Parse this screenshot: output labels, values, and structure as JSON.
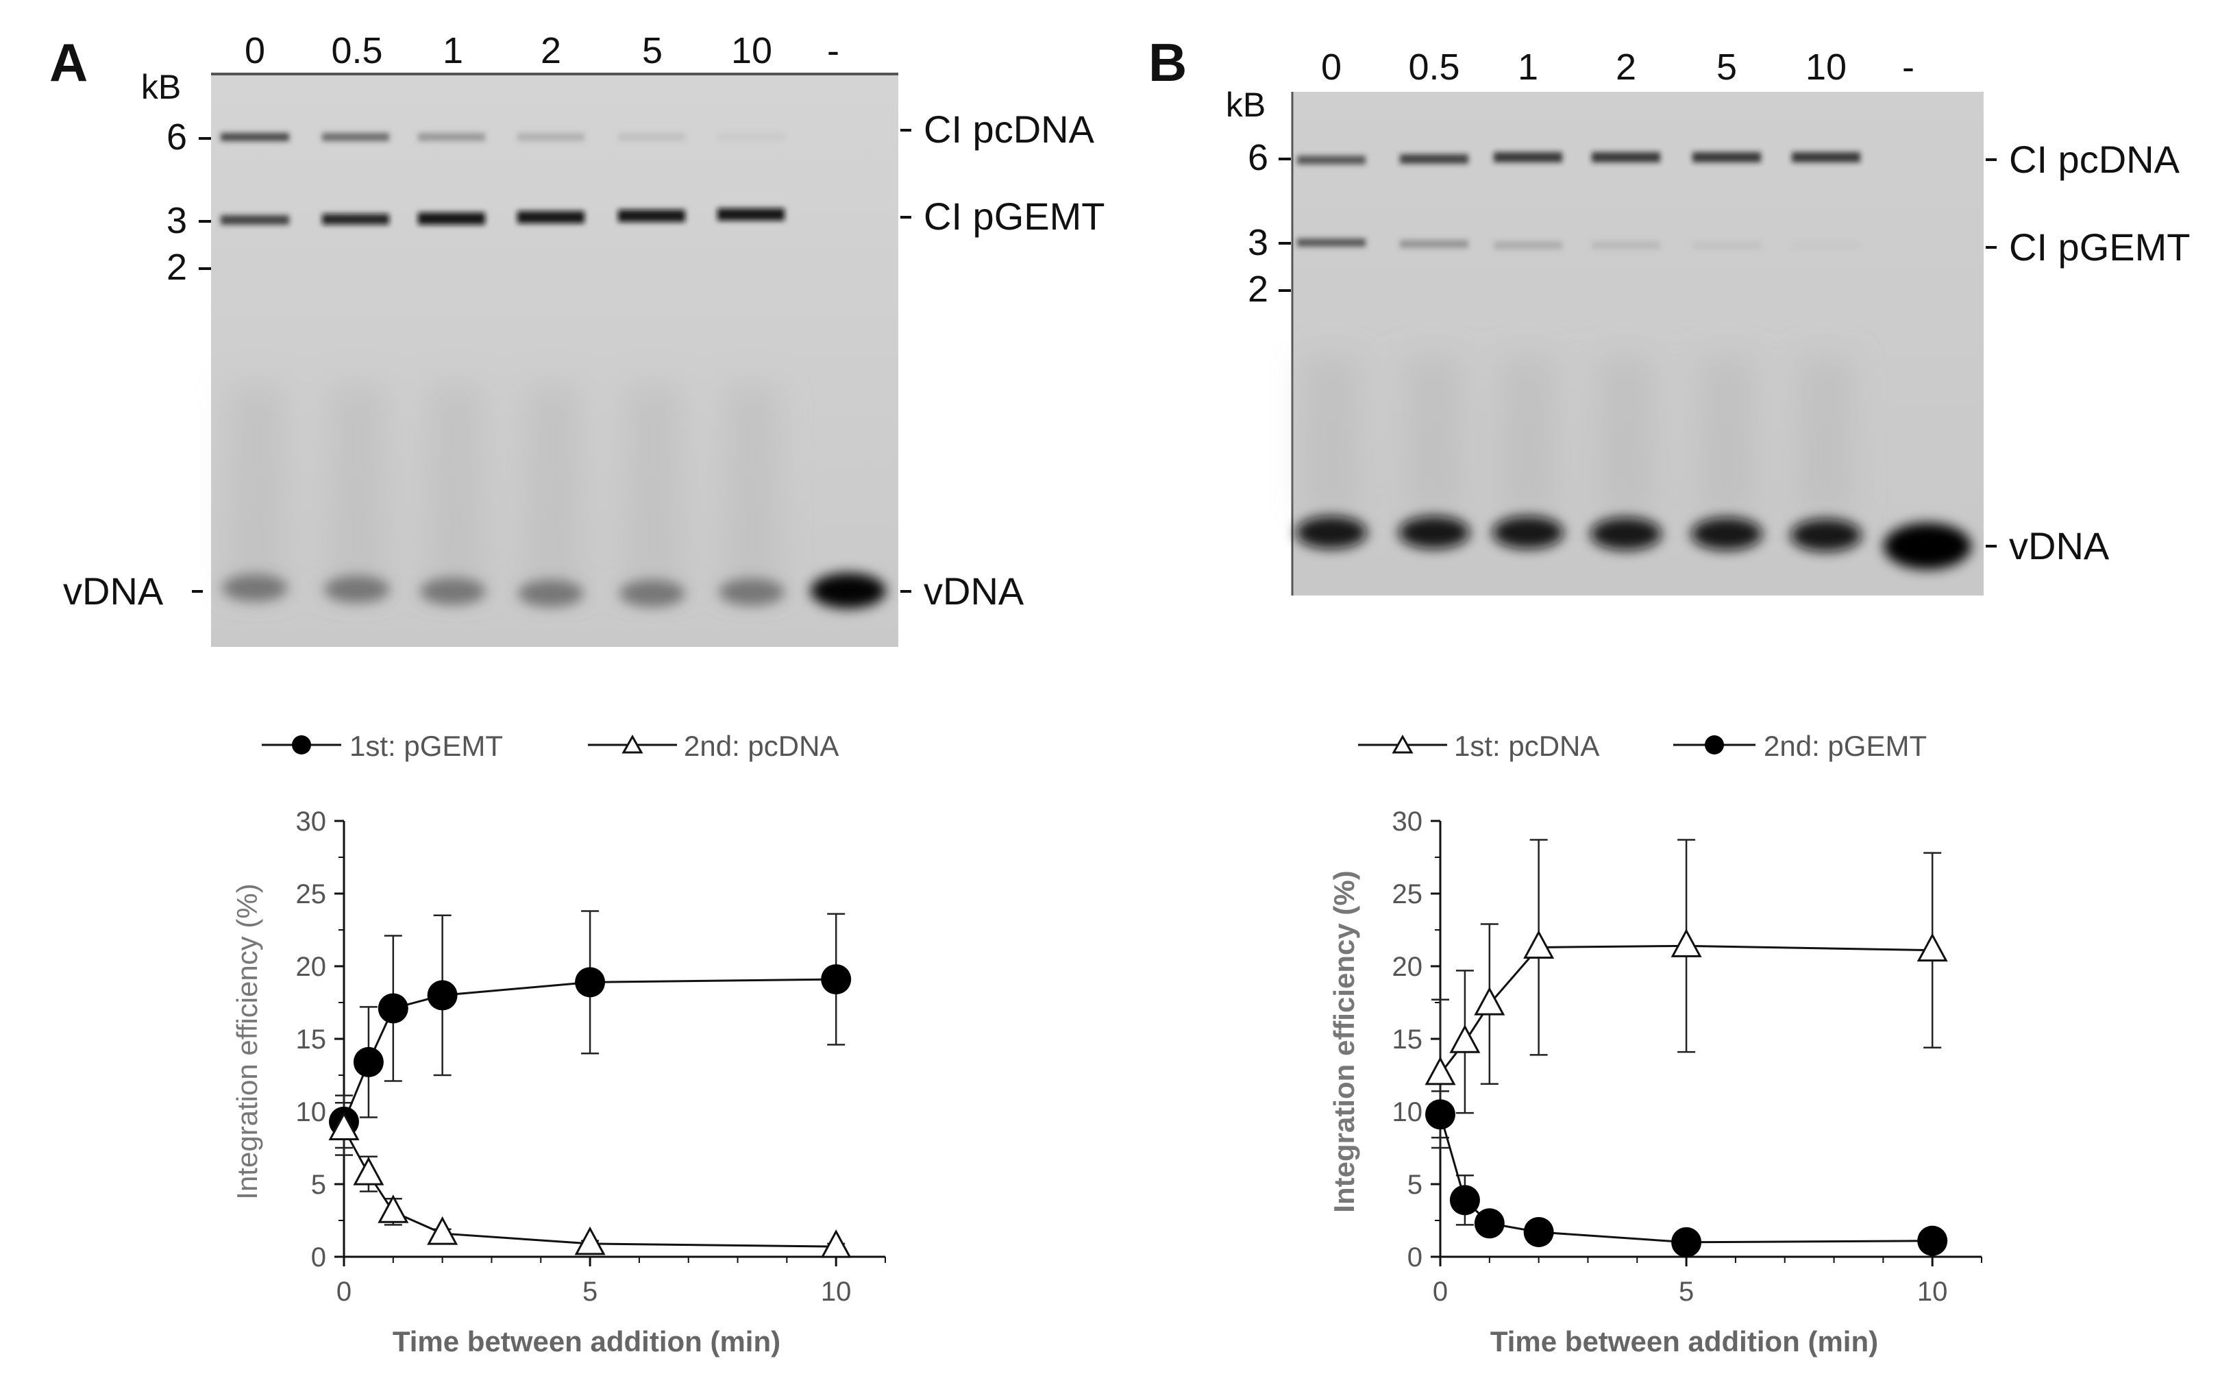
{
  "panels": [
    {
      "letter": "A",
      "gel": {
        "lanes": [
          "0",
          "0.5",
          "1",
          "2",
          "5",
          "10",
          "-"
        ],
        "unit": "kB",
        "markers": [
          "6",
          "3",
          "2"
        ],
        "band_labels": [
          "CI pcDNA",
          "CI pGEMT",
          "vDNA"
        ],
        "left_label": "vDNA"
      }
    },
    {
      "letter": "B",
      "gel": {
        "lanes": [
          "0",
          "0.5",
          "1",
          "2",
          "5",
          "10",
          "-"
        ],
        "unit": "kB",
        "markers": [
          "6",
          "3",
          "2"
        ],
        "band_labels": [
          "CI pcDNA",
          "CI pGEMT",
          "vDNA"
        ],
        "left_label": ""
      }
    }
  ],
  "chart_data": [
    {
      "type": "line",
      "panel": "A",
      "xlabel": "Time between addition (min)",
      "ylabel": "Integration efficiency (%)",
      "xlim": [
        0,
        11
      ],
      "ylim": [
        0,
        30
      ],
      "xticks": [
        0,
        5,
        10
      ],
      "yticks": [
        0,
        5,
        10,
        15,
        20,
        25,
        30
      ],
      "x": [
        0,
        0.5,
        1,
        2,
        5,
        10
      ],
      "series": [
        {
          "name": "1st: pGEMT",
          "marker": "circle-filled",
          "values": [
            9.3,
            13.4,
            17.1,
            18.0,
            18.9,
            19.1
          ],
          "errors": [
            1.8,
            3.8,
            5.0,
            5.5,
            4.9,
            4.5
          ]
        },
        {
          "name": "2nd: pcDNA",
          "marker": "triangle-open",
          "values": [
            8.8,
            5.7,
            3.1,
            1.6,
            0.9,
            0.7
          ],
          "errors": [
            1.8,
            1.2,
            0.9,
            0.3,
            0.2,
            0.2
          ]
        }
      ]
    },
    {
      "type": "line",
      "panel": "B",
      "xlabel": "Time between addition (min)",
      "ylabel": "Integration efficiency (%)",
      "xlim": [
        0,
        11
      ],
      "ylim": [
        0,
        30
      ],
      "xticks": [
        0,
        5,
        10
      ],
      "yticks": [
        0,
        5,
        10,
        15,
        20,
        25,
        30
      ],
      "x": [
        0,
        0.5,
        1,
        2,
        5,
        10
      ],
      "series": [
        {
          "name": "1st: pcDNA",
          "marker": "triangle-open",
          "values": [
            12.6,
            14.8,
            17.4,
            21.3,
            21.4,
            21.1
          ],
          "errors": [
            5.1,
            4.9,
            5.5,
            7.4,
            7.3,
            6.7
          ]
        },
        {
          "name": "2nd: pGEMT",
          "marker": "circle-filled",
          "values": [
            9.8,
            3.9,
            2.3,
            1.7,
            1.0,
            1.1
          ],
          "errors": [
            1.6,
            1.7,
            0.3,
            0.3,
            0.2,
            0.2
          ]
        }
      ]
    }
  ]
}
